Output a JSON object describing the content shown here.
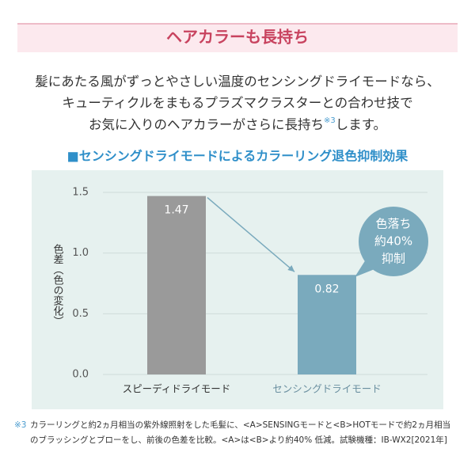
{
  "header": {
    "title": "ヘアカラーも長持ち"
  },
  "intro": {
    "line1": "髪にあたる風がずっとやさしい温度のセンシングドライモードなら、",
    "line2": "キューティクルをまもるプラズマクラスターとの合わせ技で",
    "line3a": "お気に入りのヘアカラーがさらに長持ち",
    "note": "※3",
    "line3b": "します。"
  },
  "chart_data": {
    "type": "bar",
    "title": "■センシングドライモードによるカラーリング退色抑制効果",
    "ylabel": "色差（色の変化）",
    "categories": [
      "スピーディドライモード",
      "センシングドライモード"
    ],
    "values": [
      1.47,
      0.82
    ],
    "colors": [
      "#9a9a9a",
      "#7aaabd"
    ],
    "ylim": [
      0,
      1.5
    ],
    "yticks": [
      {
        "value": 0,
        "label": "0.0"
      },
      {
        "value": 0.5,
        "label": "0.5"
      },
      {
        "value": 1,
        "label": "1.0"
      },
      {
        "value": 1.5,
        "label": "1.5"
      }
    ],
    "grid": true,
    "annotation": [
      "色落ち",
      "約40%",
      "抑制"
    ]
  },
  "footnote": {
    "marker": "※3",
    "line1": "カラーリングと約2ヵ月相当の紫外線照射をした毛髪に、<A>SENSINGモードと<B>HOTモードで約2ヵ月相当",
    "line2": "のブラッシングとブローをし、前後の色差を比較。<A>は<B>より約40% 低減。試験機種：IB-WX2[2021年]"
  }
}
